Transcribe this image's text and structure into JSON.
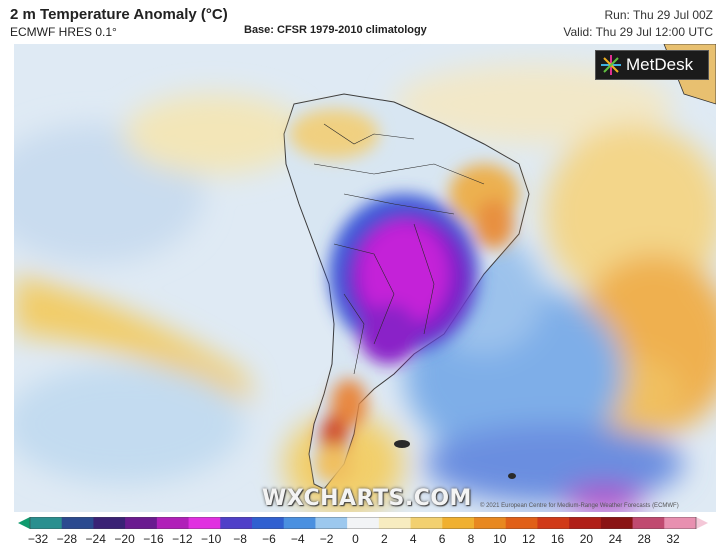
{
  "header": {
    "title": "2 m Temperature Anomaly (°C)",
    "model": "ECMWF HRES 0.1°",
    "base": "Base: CFSR 1979-2010 climatology",
    "run": "Run: Thu 29 Jul 00Z",
    "valid": "Valid: Thu 29 Jul 12:00 UTC"
  },
  "logo": {
    "text": "MetDesk",
    "icon": "metdesk-star-icon"
  },
  "watermark": "WXCHARTS.COM",
  "copyright": "© 2021 European Centre for Medium-Range Weather Forecasts (ECMWF)",
  "legend": {
    "ticks": [
      "−32",
      "−28",
      "−24",
      "−20",
      "−16",
      "−12",
      "−10",
      "−8",
      "−6",
      "−4",
      "−2",
      "0",
      "2",
      "4",
      "6",
      "8",
      "10",
      "12",
      "16",
      "20",
      "24",
      "28",
      "32"
    ],
    "colors": [
      "#0f9a6e",
      "#2a8f8f",
      "#2b4a8f",
      "#3a2275",
      "#6a1b8f",
      "#b020b8",
      "#e030e0",
      "#5040c8",
      "#3060d0",
      "#4a90e0",
      "#9cc8ee",
      "#f2f4f6",
      "#f7ecc0",
      "#f2d070",
      "#f0b030",
      "#e88820",
      "#e06018",
      "#d03a18",
      "#b02018",
      "#8a1414",
      "#c04a70",
      "#e890b0",
      "#f4c8d8"
    ]
  },
  "colors": {
    "cold_deep": "#7a18c8",
    "cold_magenta": "#c020d8",
    "cold_blue": "#2f66d8",
    "warm_yellow": "#f0c860",
    "warm_orange": "#e89030",
    "background": "#dce9f4"
  }
}
